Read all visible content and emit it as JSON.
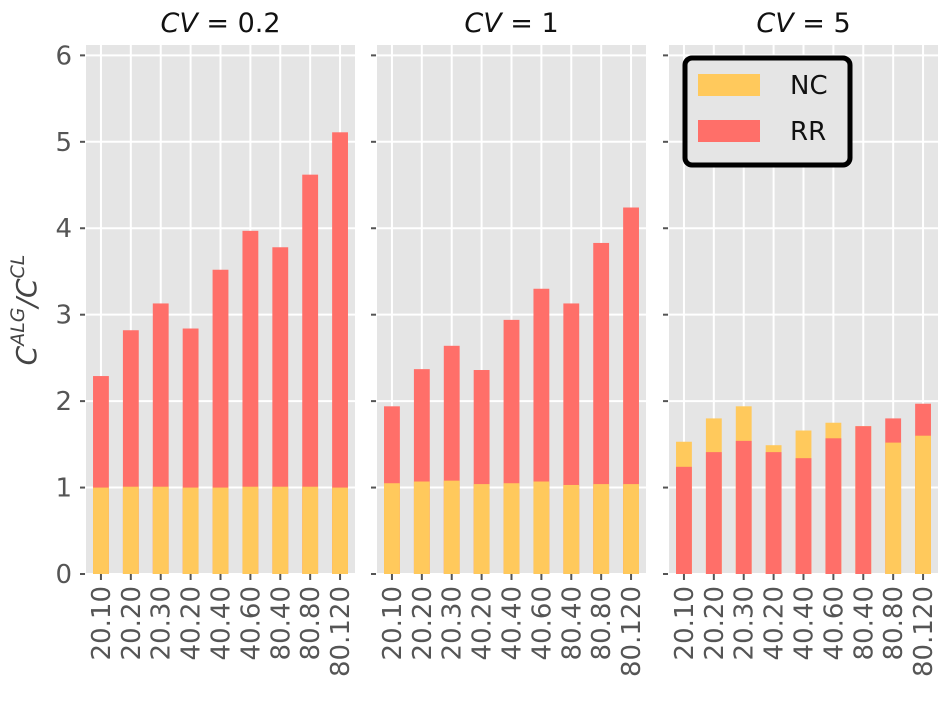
{
  "chart_data": {
    "type": "bar",
    "layout": "three panels, overlapping bars (shorter bar drawn in front)",
    "ylabel": "C^{ALG}/C^{CL}",
    "ylabel_base": "C",
    "ylabel_sup1": "ALG",
    "ylabel_mid": "/C",
    "ylabel_sup2": "CL",
    "ylim": [
      0,
      6.12
    ],
    "yticks": [
      "0",
      "1",
      "2",
      "3",
      "4",
      "5",
      "6"
    ],
    "categories": [
      "20.10",
      "20.20",
      "20.30",
      "40.20",
      "40.40",
      "40.60",
      "80.40",
      "80.80",
      "80.120"
    ],
    "legend": {
      "placement": "top-right of third panel",
      "entries": [
        "NC",
        "RR"
      ]
    },
    "colors": {
      "NC": "#FFC95C",
      "RR": "#FF6F69",
      "background": "#E5E5E5"
    },
    "panels": [
      {
        "title_var": "CV",
        "title_val": " = 0.2",
        "series": [
          {
            "name": "NC",
            "values": [
              1.0,
              1.01,
              1.01,
              1.0,
              1.0,
              1.01,
              1.01,
              1.01,
              1.0
            ]
          },
          {
            "name": "RR",
            "values": [
              2.29,
              2.82,
              3.13,
              2.84,
              3.52,
              3.97,
              3.78,
              4.62,
              5.11
            ]
          }
        ]
      },
      {
        "title_var": "CV",
        "title_val": " = 1",
        "series": [
          {
            "name": "NC",
            "values": [
              1.05,
              1.07,
              1.08,
              1.04,
              1.05,
              1.07,
              1.03,
              1.04,
              1.04
            ]
          },
          {
            "name": "RR",
            "values": [
              1.94,
              2.37,
              2.64,
              2.36,
              2.94,
              3.3,
              3.13,
              3.83,
              4.24
            ]
          }
        ]
      },
      {
        "title_var": "CV",
        "title_val": " = 5",
        "series": [
          {
            "name": "NC",
            "values": [
              1.53,
              1.8,
              1.94,
              1.49,
              1.66,
              1.75,
              1.71,
              1.52,
              1.6
            ]
          },
          {
            "name": "RR",
            "values": [
              1.24,
              1.41,
              1.54,
              1.41,
              1.34,
              1.57,
              1.71,
              1.8,
              1.97
            ]
          }
        ]
      }
    ]
  }
}
